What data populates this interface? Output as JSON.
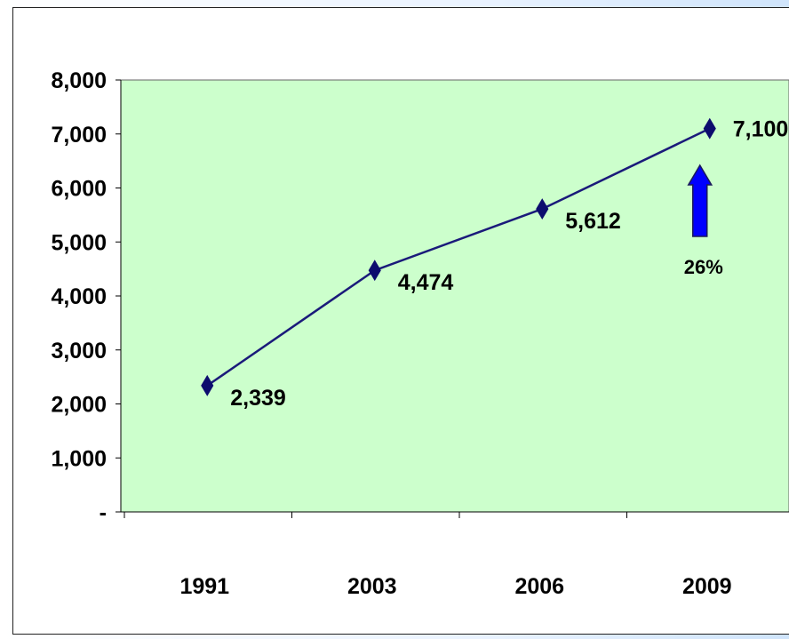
{
  "chart_data": {
    "type": "line",
    "categories": [
      "1991",
      "2003",
      "2006",
      "2009"
    ],
    "series": [
      {
        "values": [
          2339,
          4474,
          5612,
          7100
        ]
      }
    ],
    "data_labels": [
      "2,339",
      "4,474",
      "5,612",
      "7,100"
    ],
    "y_tick_labels": [
      "-",
      "1,000",
      "2,000",
      "3,000",
      "4,000",
      "5,000",
      "6,000",
      "7,000",
      "8,000"
    ],
    "ylim": [
      0,
      8000
    ],
    "annotation": {
      "text": "26%",
      "category": "2009"
    },
    "colors": {
      "plot_background": "#ccffcc",
      "line": "#1a1a7a",
      "marker": "#0c0c6e",
      "arrow": "#0000ff"
    },
    "grid": false,
    "legend": "none"
  }
}
